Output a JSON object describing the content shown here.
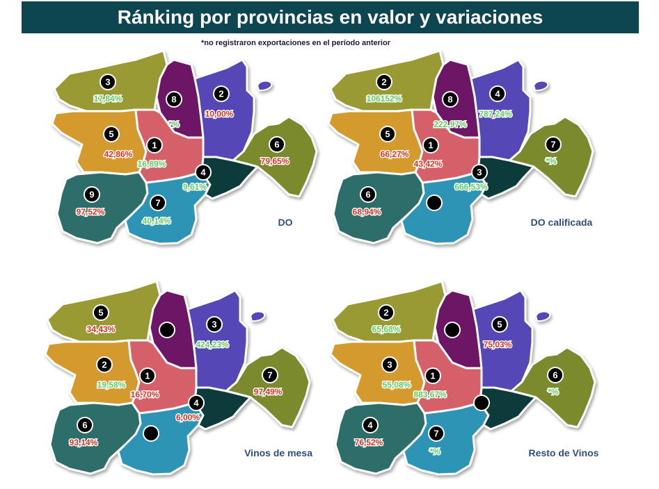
{
  "title": "Ránking por provincias en valor y variaciones",
  "subtitle": "*no registraron exportaciones en el período anterior",
  "colors": {
    "banner": "#0d4650",
    "positive": "#5fcf5f",
    "negative": "#e0301e",
    "province_A": "#9a9a36",
    "province_B": "#6e1866",
    "province_C": "#5646b6",
    "province_D": "#d49a2e",
    "province_E": "#d5616a",
    "province_F": "#7b8a2e",
    "province_G": "#2e6e6a",
    "province_H": "#2f94b5",
    "province_I": "#0d3b3a"
  },
  "maps": [
    {
      "label": "DO",
      "provinces": {
        "A": {
          "rank": "3",
          "pct": "17,84%",
          "sign": "positive"
        },
        "B": {
          "rank": "8",
          "pct": "*%",
          "sign": "positive"
        },
        "C": {
          "rank": "2",
          "pct": "10,00%",
          "sign": "negative"
        },
        "D": {
          "rank": "5",
          "pct": "42,86%",
          "sign": "negative"
        },
        "E": {
          "rank": "1",
          "pct": "16,89%",
          "sign": "positive"
        },
        "F": {
          "rank": "6",
          "pct": "79,65%",
          "sign": "negative"
        },
        "G": {
          "rank": "9",
          "pct": "97,52%",
          "sign": "negative"
        },
        "H": {
          "rank": "7",
          "pct": "40,14%",
          "sign": "positive"
        },
        "I": {
          "rank": "4",
          "pct": "9,61%",
          "sign": "positive"
        }
      }
    },
    {
      "label": "DO calificada",
      "provinces": {
        "A": {
          "rank": "2",
          "pct": "106152%",
          "sign": "positive"
        },
        "B": {
          "rank": "8",
          "pct": "222,97%",
          "sign": "positive"
        },
        "C": {
          "rank": "4",
          "pct": "787,24%",
          "sign": "positive"
        },
        "D": {
          "rank": "5",
          "pct": "66,27%",
          "sign": "negative"
        },
        "E": {
          "rank": "1",
          "pct": "43,42%",
          "sign": "negative"
        },
        "F": {
          "rank": "7",
          "pct": "*%",
          "sign": "positive"
        },
        "G": {
          "rank": "6",
          "pct": "68,94%",
          "sign": "negative"
        },
        "H": {
          "rank": "",
          "pct": "",
          "sign": "positive"
        },
        "I": {
          "rank": "3",
          "pct": "666,53%",
          "sign": "positive"
        }
      }
    },
    {
      "label": "Vinos de mesa",
      "provinces": {
        "A": {
          "rank": "5",
          "pct": "34,43%",
          "sign": "negative"
        },
        "B": {
          "rank": "",
          "pct": "",
          "sign": "positive"
        },
        "C": {
          "rank": "3",
          "pct": "424,23%",
          "sign": "positive"
        },
        "D": {
          "rank": "2",
          "pct": "19,58%",
          "sign": "positive"
        },
        "E": {
          "rank": "1",
          "pct": "16,70%",
          "sign": "negative"
        },
        "F": {
          "rank": "7",
          "pct": "97,49%",
          "sign": "negative"
        },
        "G": {
          "rank": "6",
          "pct": "93,14%",
          "sign": "negative"
        },
        "H": {
          "rank": "",
          "pct": "",
          "sign": "positive"
        },
        "I": {
          "rank": "4",
          "pct": "6,00%",
          "sign": "negative"
        }
      }
    },
    {
      "label": "Resto de Vinos",
      "provinces": {
        "A": {
          "rank": "2",
          "pct": "65,68%",
          "sign": "positive"
        },
        "B": {
          "rank": "",
          "pct": "",
          "sign": "positive"
        },
        "C": {
          "rank": "5",
          "pct": "75,03%",
          "sign": "negative"
        },
        "D": {
          "rank": "3",
          "pct": "55,08%",
          "sign": "positive"
        },
        "E": {
          "rank": "1",
          "pct": "883,67%",
          "sign": "positive"
        },
        "F": {
          "rank": "6",
          "pct": "*%",
          "sign": "positive"
        },
        "G": {
          "rank": "4",
          "pct": "76,52%",
          "sign": "negative"
        },
        "H": {
          "rank": "7",
          "pct": "*%",
          "sign": "positive"
        },
        "I": {
          "rank": "",
          "pct": "",
          "sign": "positive"
        }
      }
    }
  ]
}
